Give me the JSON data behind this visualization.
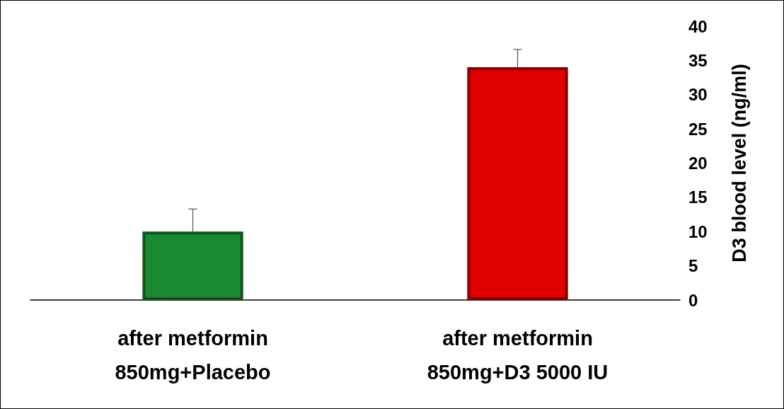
{
  "chart_data": {
    "type": "bar",
    "ylabel": "D3 blood level (ng/ml)",
    "categories": [
      "after metformin\n850mg+Placebo",
      "after metformin\n850mg+D3 5000 IU"
    ],
    "values": [
      10,
      34
    ],
    "colors": [
      "#1a8a32",
      "#e00000"
    ],
    "errors": [
      [
        10,
        13.3
      ],
      [
        34,
        36.6
      ]
    ],
    "ylim": [
      0,
      40
    ],
    "yticks": [
      0,
      5,
      10,
      15,
      20,
      25,
      30,
      35,
      40
    ],
    "grid": false
  }
}
